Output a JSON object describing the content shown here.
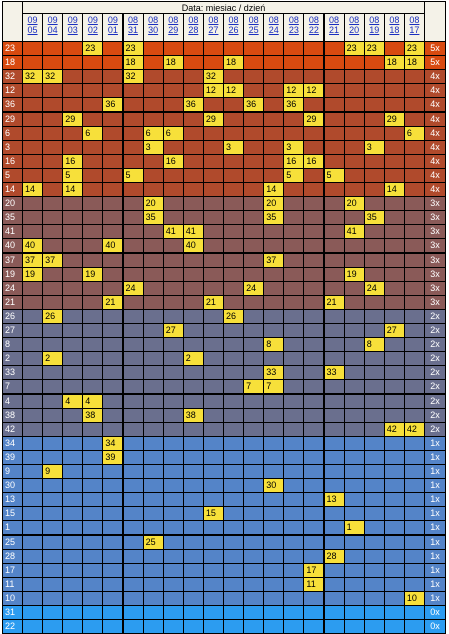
{
  "header": {
    "title": "Data: miesiac / dzień",
    "dates": [
      [
        "09",
        "05"
      ],
      [
        "09",
        "04"
      ],
      [
        "09",
        "03"
      ],
      [
        "09",
        "02"
      ],
      [
        "09",
        "01"
      ],
      [
        "08",
        "31"
      ],
      [
        "08",
        "30"
      ],
      [
        "08",
        "29"
      ],
      [
        "08",
        "28"
      ],
      [
        "08",
        "27"
      ],
      [
        "08",
        "26"
      ],
      [
        "08",
        "25"
      ],
      [
        "08",
        "24"
      ],
      [
        "08",
        "23"
      ],
      [
        "08",
        "22"
      ],
      [
        "08",
        "21"
      ],
      [
        "08",
        "20"
      ],
      [
        "08",
        "19"
      ],
      [
        "08",
        "18"
      ],
      [
        "08",
        "17"
      ]
    ]
  },
  "rows": [
    {
      "label": "23",
      "marks": [
        3,
        5,
        16,
        17,
        19
      ],
      "mult": "5x"
    },
    {
      "label": "18",
      "marks": [
        5,
        7,
        10,
        18,
        19
      ],
      "mult": "5x"
    },
    {
      "label": "32",
      "marks": [
        0,
        1,
        5,
        9
      ],
      "mult": "4x"
    },
    {
      "label": "12",
      "marks": [
        9,
        10,
        13,
        14
      ],
      "mult": "4x"
    },
    {
      "label": "36",
      "marks": [
        4,
        8,
        11,
        13
      ],
      "mult": "4x"
    },
    {
      "label": "29",
      "marks": [
        2,
        9,
        14,
        18
      ],
      "mult": "4x"
    },
    {
      "label": "6",
      "marks": [
        3,
        6,
        7,
        19
      ],
      "mult": "4x"
    },
    {
      "label": "3",
      "marks": [
        6,
        10,
        13,
        17
      ],
      "mult": "4x"
    },
    {
      "label": "16",
      "marks": [
        2,
        7,
        13,
        14
      ],
      "mult": "4x"
    },
    {
      "label": "5",
      "marks": [
        2,
        5,
        13,
        15
      ],
      "mult": "4x"
    },
    {
      "label": "14",
      "marks": [
        0,
        2,
        12,
        18
      ],
      "mult": "4x"
    },
    {
      "label": "20",
      "marks": [
        6,
        12,
        16
      ],
      "mult": "3x"
    },
    {
      "label": "35",
      "marks": [
        6,
        12,
        17
      ],
      "mult": "3x"
    },
    {
      "label": "41",
      "marks": [
        7,
        8,
        16
      ],
      "mult": "3x"
    },
    {
      "label": "40",
      "marks": [
        0,
        4,
        8
      ],
      "mult": "3x"
    },
    {
      "label": "37",
      "marks": [
        0,
        1,
        12
      ],
      "mult": "3x"
    },
    {
      "label": "19",
      "marks": [
        0,
        3,
        16
      ],
      "mult": "3x"
    },
    {
      "label": "24",
      "marks": [
        5,
        11,
        17
      ],
      "mult": "3x"
    },
    {
      "label": "21",
      "marks": [
        4,
        9,
        15
      ],
      "mult": "3x"
    },
    {
      "label": "26",
      "marks": [
        1,
        10
      ],
      "mult": "2x"
    },
    {
      "label": "27",
      "marks": [
        7,
        18
      ],
      "mult": "2x"
    },
    {
      "label": "8",
      "marks": [
        12,
        17
      ],
      "mult": "2x"
    },
    {
      "label": "2",
      "marks": [
        1,
        8
      ],
      "mult": "2x"
    },
    {
      "label": "33",
      "marks": [
        12,
        15
      ],
      "mult": "2x"
    },
    {
      "label": "7",
      "marks": [
        11,
        12
      ],
      "mult": "2x"
    },
    {
      "label": "4",
      "marks": [
        2,
        3
      ],
      "mult": "2x"
    },
    {
      "label": "38",
      "marks": [
        3,
        8
      ],
      "mult": "2x"
    },
    {
      "label": "42",
      "marks": [
        18,
        19
      ],
      "mult": "2x"
    },
    {
      "label": "34",
      "marks": [
        4
      ],
      "mult": "1x"
    },
    {
      "label": "39",
      "marks": [
        4
      ],
      "mult": "1x"
    },
    {
      "label": "9",
      "marks": [
        1
      ],
      "mult": "1x"
    },
    {
      "label": "30",
      "marks": [
        12
      ],
      "mult": "1x"
    },
    {
      "label": "13",
      "marks": [
        15
      ],
      "mult": "1x"
    },
    {
      "label": "15",
      "marks": [
        9
      ],
      "mult": "1x"
    },
    {
      "label": "1",
      "marks": [
        16
      ],
      "mult": "1x"
    },
    {
      "label": "25",
      "marks": [
        6
      ],
      "mult": "1x"
    },
    {
      "label": "28",
      "marks": [
        15
      ],
      "mult": "1x"
    },
    {
      "label": "17",
      "marks": [
        14
      ],
      "mult": "1x"
    },
    {
      "label": "11",
      "marks": [
        14
      ],
      "mult": "1x"
    },
    {
      "label": "10",
      "marks": [
        19
      ],
      "mult": "1x"
    },
    {
      "label": "31",
      "marks": [],
      "mult": "0x"
    },
    {
      "label": "22",
      "marks": [],
      "mult": "0x"
    }
  ],
  "colors": {
    "5x": "#d84a10",
    "4x": "#b04a2c",
    "3x": "#8a5a58",
    "2x": "#6a6f8e",
    "1x": "#5484c8",
    "0x": "#2c9cf0",
    "mark": "#f7e03a",
    "header_bg": "#f4f2e8",
    "header_text": "#1a2ec0"
  }
}
